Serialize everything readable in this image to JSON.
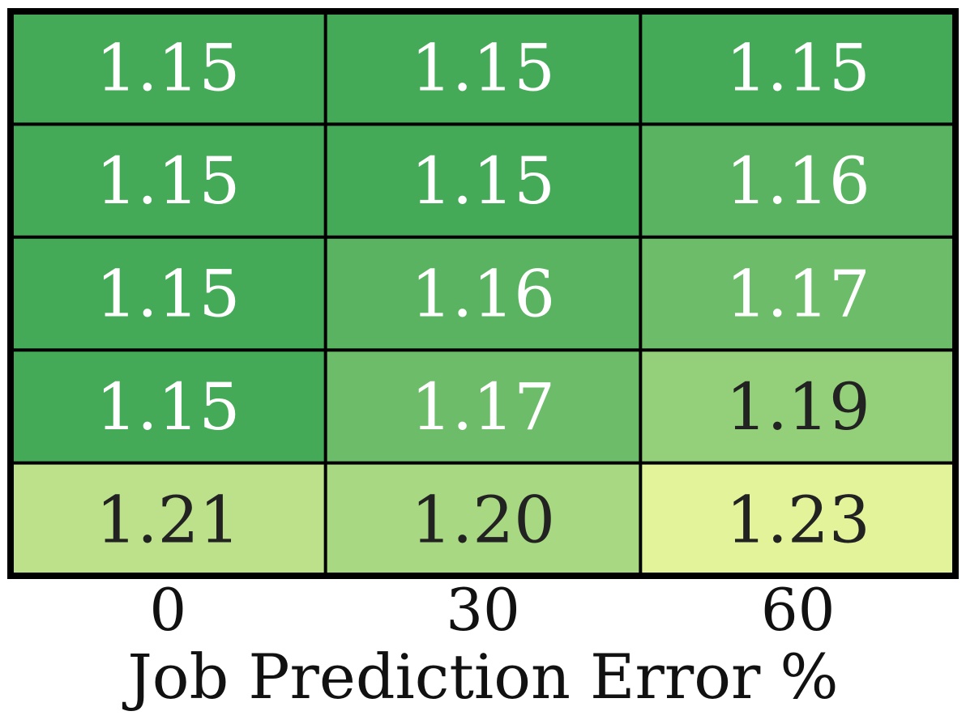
{
  "chart_data": {
    "type": "heatmap",
    "title": "",
    "xlabel": "Job Prediction Error %",
    "ylabel": "",
    "x_categories": [
      "0",
      "30",
      "60"
    ],
    "y_categories": [],
    "values": [
      [
        "1.15",
        "1.15",
        "1.15"
      ],
      [
        "1.15",
        "1.15",
        "1.16"
      ],
      [
        "1.15",
        "1.16",
        "1.17"
      ],
      [
        "1.15",
        "1.17",
        "1.19"
      ],
      [
        "1.21",
        "1.20",
        "1.23"
      ]
    ],
    "colormap": {
      "low": "#45aa58",
      "high": "#e3f39a"
    },
    "text_colors": {
      "light": "#ffffff",
      "dark": "#222222"
    },
    "grid": true,
    "legend": "none"
  }
}
